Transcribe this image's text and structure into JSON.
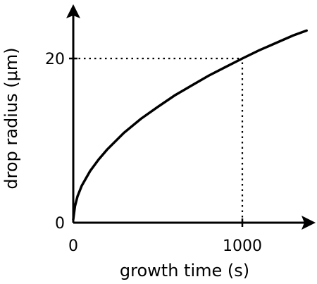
{
  "chart_data": {
    "type": "line",
    "title": "",
    "xlabel": "growth time (s)",
    "ylabel": "drop radius (μm)",
    "x_ticks": [
      {
        "value": 0,
        "label": "0"
      },
      {
        "value": 1000,
        "label": "1000"
      }
    ],
    "y_ticks": [
      {
        "value": 0,
        "label": "0"
      },
      {
        "value": 20,
        "label": "20"
      }
    ],
    "xlim": [
      0,
      1400
    ],
    "ylim": [
      0,
      25
    ],
    "grid": false,
    "series": [
      {
        "x": [
          0,
          10,
          25,
          50,
          100,
          150,
          200,
          300,
          400,
          500,
          600,
          700,
          800,
          900,
          1000,
          1100,
          1200,
          1300,
          1380
        ],
        "y": [
          0.4,
          2.0,
          3.2,
          4.5,
          6.3,
          7.7,
          8.9,
          10.95,
          12.65,
          14.1,
          15.5,
          16.7,
          17.9,
          18.95,
          20.0,
          21.0,
          21.9,
          22.8,
          23.4
        ]
      }
    ],
    "guides": [
      {
        "type": "horizontal",
        "y": 20,
        "x_from": 0,
        "x_to": 1000,
        "style": "dotted"
      },
      {
        "type": "vertical",
        "x": 1000,
        "y_from": 0,
        "y_to": 20,
        "style": "dotted"
      }
    ],
    "colors": {
      "line": "#000000",
      "axes": "#000000",
      "background": "#ffffff"
    }
  }
}
